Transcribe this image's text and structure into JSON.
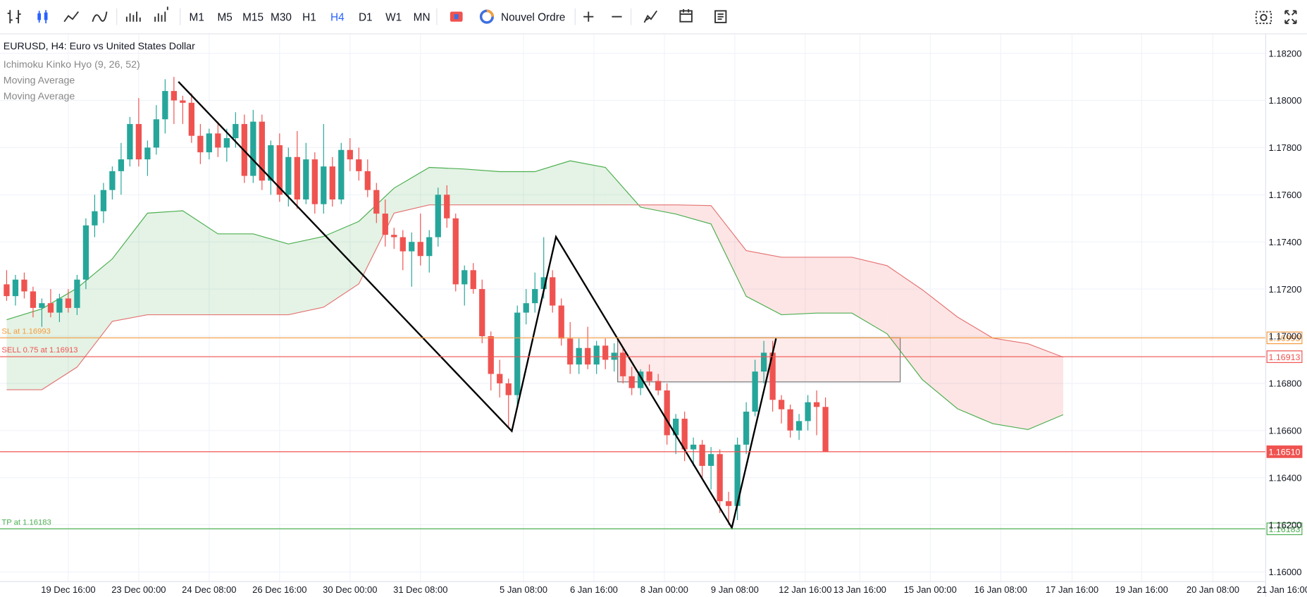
{
  "toolbar": {
    "timeframes": [
      "M1",
      "M5",
      "M15",
      "M30",
      "H1",
      "H4",
      "D1",
      "W1",
      "MN"
    ],
    "active": "H4",
    "order_button": "Nouvel Ordre"
  },
  "chart_data": {
    "type": "candlestick",
    "title": "EURUSD, H4: Euro vs United States Dollar",
    "indicators": [
      "Ichimoku Kinko Hyo (9, 26, 52)",
      "Moving Average",
      "Moving Average"
    ],
    "up_color": "#26a69a",
    "down_color": "#ef5350",
    "grid": true,
    "open": [
      1.1722,
      1.1717,
      1.1724,
      1.1719,
      1.1712,
      1.1714,
      1.171,
      1.1716,
      1.1712,
      1.1724,
      1.1747,
      1.1753,
      1.1762,
      1.177,
      1.1775,
      1.179,
      1.1775,
      1.178,
      1.1792,
      1.1804,
      1.18,
      1.1799,
      1.1785,
      1.1778,
      1.1786,
      1.178,
      1.1784,
      1.179,
      1.1768,
      1.1791,
      1.1766,
      1.1781,
      1.176,
      1.1776,
      1.1758,
      1.1775,
      1.1756,
      1.1772,
      1.1758,
      1.1779,
      1.1775,
      1.177,
      1.1762,
      1.1752,
      1.1743,
      1.1742,
      1.1736,
      1.174,
      1.1734,
      1.1742,
      1.176,
      1.175,
      1.1722,
      1.1728,
      1.172,
      1.17,
      1.1684,
      1.168,
      1.1675,
      1.171,
      1.1714,
      1.172,
      1.1725,
      1.1713,
      1.1699,
      1.1688,
      1.1695,
      1.1688,
      1.1696,
      1.169,
      1.1693,
      1.1683,
      1.1678,
      1.1685,
      1.1681,
      1.1677,
      1.1658,
      1.1665,
      1.1652,
      1.1654,
      1.1645,
      1.165,
      1.163,
      1.1628,
      1.1654,
      1.1668,
      1.1685,
      1.1693,
      1.1673,
      1.1669,
      1.166,
      1.1664,
      1.1672,
      1.167
    ],
    "high": [
      1.1728,
      1.1726,
      1.1727,
      1.1721,
      1.1716,
      1.172,
      1.1718,
      1.172,
      1.1726,
      1.175,
      1.176,
      1.1765,
      1.1772,
      1.1782,
      1.1793,
      1.1801,
      1.1783,
      1.1798,
      1.1809,
      1.181,
      1.1802,
      1.1803,
      1.179,
      1.1788,
      1.1791,
      1.1788,
      1.1795,
      1.1794,
      1.1796,
      1.1794,
      1.1783,
      1.1786,
      1.178,
      1.1787,
      1.1782,
      1.1778,
      1.179,
      1.1776,
      1.1782,
      1.1784,
      1.178,
      1.1775,
      1.1765,
      1.1758,
      1.1746,
      1.1745,
      1.1744,
      1.1752,
      1.1745,
      1.1763,
      1.1764,
      1.1752,
      1.173,
      1.1731,
      1.1724,
      1.1702,
      1.169,
      1.1682,
      1.1713,
      1.172,
      1.1727,
      1.1742,
      1.1728,
      1.1716,
      1.1706,
      1.1699,
      1.1704,
      1.1698,
      1.1699,
      1.1697,
      1.1695,
      1.1687,
      1.1686,
      1.1688,
      1.1684,
      1.168,
      1.1667,
      1.1668,
      1.1657,
      1.1656,
      1.1653,
      1.1652,
      1.1634,
      1.1657,
      1.1672,
      1.169,
      1.1698,
      1.1698,
      1.1675,
      1.1671,
      1.1667,
      1.1675,
      1.1677,
      1.1674
    ],
    "low": [
      1.1715,
      1.1713,
      1.1716,
      1.1708,
      1.1704,
      1.1708,
      1.1706,
      1.171,
      1.1709,
      1.172,
      1.1742,
      1.1748,
      1.1758,
      1.176,
      1.1772,
      1.1772,
      1.1768,
      1.1777,
      1.1786,
      1.179,
      1.179,
      1.1782,
      1.1773,
      1.1775,
      1.1776,
      1.1774,
      1.178,
      1.1765,
      1.1765,
      1.1762,
      1.176,
      1.1757,
      1.1755,
      1.1754,
      1.1756,
      1.1752,
      1.1752,
      1.1755,
      1.1756,
      1.177,
      1.1766,
      1.1759,
      1.1748,
      1.1738,
      1.1737,
      1.1728,
      1.1721,
      1.173,
      1.1727,
      1.1738,
      1.1746,
      1.1719,
      1.1713,
      1.1718,
      1.1697,
      1.1677,
      1.1674,
      1.1661,
      1.167,
      1.1705,
      1.171,
      1.1716,
      1.171,
      1.1696,
      1.1684,
      1.1684,
      1.1686,
      1.1684,
      1.1686,
      1.1685,
      1.168,
      1.1675,
      1.1675,
      1.1679,
      1.1675,
      1.1654,
      1.165,
      1.1647,
      1.1645,
      1.164,
      1.1635,
      1.1625,
      1.162,
      1.1622,
      1.165,
      1.1666,
      1.168,
      1.1668,
      1.1663,
      1.1657,
      1.1656,
      1.166,
      1.1658,
      1.1651
    ],
    "close": [
      1.1717,
      1.1724,
      1.1719,
      1.1712,
      1.1714,
      1.171,
      1.1716,
      1.1712,
      1.1724,
      1.1747,
      1.1753,
      1.1762,
      1.177,
      1.1775,
      1.179,
      1.1775,
      1.178,
      1.1792,
      1.1804,
      1.18,
      1.1799,
      1.1785,
      1.1778,
      1.1786,
      1.178,
      1.1784,
      1.179,
      1.1768,
      1.1791,
      1.1766,
      1.1781,
      1.176,
      1.1776,
      1.1758,
      1.1775,
      1.1756,
      1.1772,
      1.1758,
      1.1779,
      1.1775,
      1.177,
      1.1762,
      1.1752,
      1.1743,
      1.1742,
      1.1736,
      1.174,
      1.1734,
      1.1742,
      1.176,
      1.175,
      1.1722,
      1.1728,
      1.172,
      1.17,
      1.1684,
      1.168,
      1.1675,
      1.171,
      1.1714,
      1.172,
      1.1725,
      1.1713,
      1.1699,
      1.1688,
      1.1695,
      1.1688,
      1.1696,
      1.169,
      1.1693,
      1.1683,
      1.1678,
      1.1685,
      1.1681,
      1.1677,
      1.1658,
      1.1665,
      1.1652,
      1.1654,
      1.1645,
      1.165,
      1.163,
      1.1628,
      1.1654,
      1.1668,
      1.1685,
      1.1693,
      1.1673,
      1.1669,
      1.166,
      1.1664,
      1.1672,
      1.167,
      1.1651
    ],
    "xlim": [
      -0.75,
      142.95
    ],
    "xticks": [
      {
        "value": 7,
        "label": "19 Dec 16:00"
      },
      {
        "value": 15,
        "label": "23 Dec 00:00"
      },
      {
        "value": 23,
        "label": "24 Dec 08:00"
      },
      {
        "value": 31,
        "label": "26 Dec 16:00"
      },
      {
        "value": 39,
        "label": "30 Dec 00:00"
      },
      {
        "value": 47,
        "label": "31 Dec 08:00"
      },
      {
        "value": 58.7,
        "label": "5 Jan 08:00"
      },
      {
        "value": 66.7,
        "label": "6 Jan 16:00"
      },
      {
        "value": 74.7,
        "label": "8 Jan 00:00"
      },
      {
        "value": 82.7,
        "label": "9 Jan 08:00"
      },
      {
        "value": 90.7,
        "label": "12 Jan 16:00"
      },
      {
        "value": 96.9,
        "label": "13 Jan 16:00"
      },
      {
        "value": 104.9,
        "label": "15 Jan 00:00"
      },
      {
        "value": 112.9,
        "label": "16 Jan 08:00"
      },
      {
        "value": 121,
        "label": "17 Jan 16:00"
      },
      {
        "value": 128.9,
        "label": "19 Jan 16:00"
      },
      {
        "value": 137,
        "label": "20 Jan 08:00"
      },
      {
        "value": 145,
        "label": "21 Jan 16:00"
      }
    ],
    "ylim": [
      1.15961,
      1.18281
    ],
    "yticks": [
      {
        "value": 1.16,
        "label": "1.16000"
      },
      {
        "value": 1.162,
        "label": "1.16200"
      },
      {
        "value": 1.164,
        "label": "1.16400"
      },
      {
        "value": 1.166,
        "label": "1.16600"
      },
      {
        "value": 1.168,
        "label": "1.16800"
      },
      {
        "value": 1.17,
        "label": "1.17000"
      },
      {
        "value": 1.172,
        "label": "1.17200"
      },
      {
        "value": 1.174,
        "label": "1.17400"
      },
      {
        "value": 1.176,
        "label": "1.17600"
      },
      {
        "value": 1.178,
        "label": "1.17800"
      },
      {
        "value": 1.18,
        "label": "1.18000"
      },
      {
        "value": 1.182,
        "label": "1.18200"
      }
    ],
    "cloud": {
      "x": [
        0,
        4,
        8,
        12,
        16,
        20,
        24,
        28,
        32,
        36,
        40,
        44,
        48,
        52,
        56,
        60,
        64,
        68,
        72,
        76,
        80,
        84,
        88,
        92,
        96,
        100,
        104,
        108,
        112,
        116,
        120
      ],
      "span_a": [
        1.1707,
        1.17116,
        1.17204,
        1.17328,
        1.17522,
        1.17532,
        1.17434,
        1.17434,
        1.17391,
        1.17423,
        1.17487,
        1.17628,
        1.17716,
        1.17709,
        1.17698,
        1.17698,
        1.17744,
        1.17716,
        1.17547,
        1.17518,
        1.17476,
        1.17169,
        1.17091,
        1.17098,
        1.17098,
        1.1701,
        1.16816,
        1.16692,
        1.16629,
        1.16604,
        1.16667
      ],
      "span_b": [
        1.16773,
        1.16773,
        1.16869,
        1.17063,
        1.17091,
        1.17091,
        1.17091,
        1.17091,
        1.17091,
        1.17123,
        1.17222,
        1.17522,
        1.17557,
        1.17557,
        1.17557,
        1.17557,
        1.17557,
        1.17557,
        1.17557,
        1.17557,
        1.17554,
        1.17363,
        1.17335,
        1.17335,
        1.17335,
        1.17299,
        1.17197,
        1.17081,
        1.16992,
        1.16968,
        1.16911
      ],
      "span_a_color": "#4caf50",
      "span_b_color": "#e57373"
    },
    "price_lines": [
      {
        "label": "SL at 1.16993",
        "value": 1.16993,
        "value_label": "1.16993",
        "color": "#f59a3b"
      },
      {
        "label": "SELL 0.75 at 1.16913",
        "value": 1.16913,
        "value_label": "1.16913",
        "color": "#ef5350"
      },
      {
        "value": 1.1651,
        "value_label": "1.16510",
        "color": "#ef5350",
        "filled": true
      },
      {
        "label": "TP at 1.16183",
        "value": 1.16183,
        "value_label": "1.16183",
        "color": "#4caf50"
      }
    ]
  }
}
